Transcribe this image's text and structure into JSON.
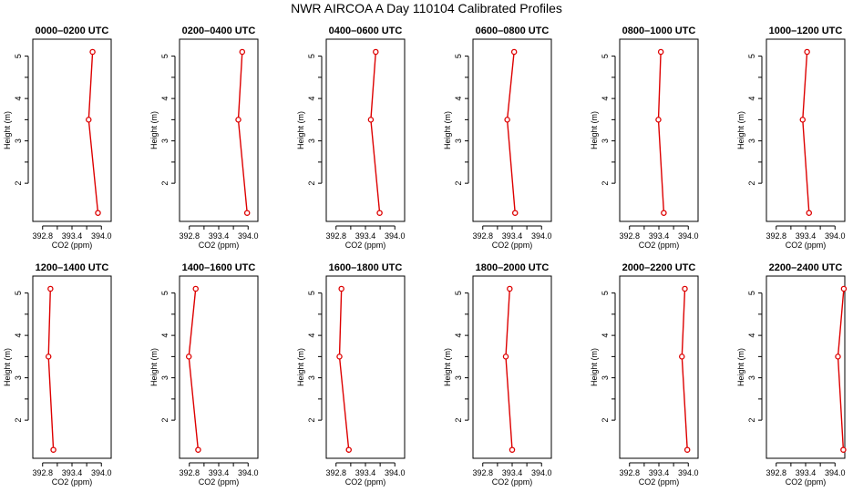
{
  "title": "NWR AIRCOA A  Day 110104  Calibrated Profiles",
  "colors": {
    "series": "#dd0000",
    "frame": "#000000",
    "background": "#ffffff"
  },
  "chart_data": [
    {
      "type": "line",
      "title": "0000–0200 UTC",
      "xlabel": "CO2 (ppm)",
      "ylabel": "Height (m)",
      "xlim": [
        392.6,
        394.2
      ],
      "ylim": [
        1.1,
        5.4
      ],
      "xticks": [
        "392.8",
        "393.4",
        "394.0"
      ],
      "yticks": [
        "2",
        "3",
        "4",
        "5"
      ],
      "series": [
        {
          "x": [
            393.82,
            393.74,
            393.93
          ],
          "y": [
            5.1,
            3.5,
            1.3
          ]
        }
      ]
    },
    {
      "type": "line",
      "title": "0200–0400 UTC",
      "xlabel": "CO2 (ppm)",
      "ylabel": "Height (m)",
      "xlim": [
        392.6,
        394.2
      ],
      "ylim": [
        1.1,
        5.4
      ],
      "xticks": [
        "392.8",
        "393.4",
        "394.0"
      ],
      "yticks": [
        "2",
        "3",
        "4",
        "5"
      ],
      "series": [
        {
          "x": [
            393.88,
            393.8,
            393.98
          ],
          "y": [
            5.1,
            3.5,
            1.3
          ]
        }
      ]
    },
    {
      "type": "line",
      "title": "0400–0600 UTC",
      "xlabel": "CO2 (ppm)",
      "ylabel": "Height (m)",
      "xlim": [
        392.6,
        394.2
      ],
      "ylim": [
        1.1,
        5.4
      ],
      "xticks": [
        "392.8",
        "393.4",
        "394.0"
      ],
      "yticks": [
        "2",
        "3",
        "4",
        "5"
      ],
      "series": [
        {
          "x": [
            393.61,
            393.51,
            393.69
          ],
          "y": [
            5.1,
            3.5,
            1.3
          ]
        }
      ]
    },
    {
      "type": "line",
      "title": "0600–0800 UTC",
      "xlabel": "CO2 (ppm)",
      "ylabel": "Height (m)",
      "xlim": [
        392.6,
        394.2
      ],
      "ylim": [
        1.1,
        5.4
      ],
      "xticks": [
        "392.8",
        "393.4",
        "394.0"
      ],
      "yticks": [
        "2",
        "3",
        "4",
        "5"
      ],
      "series": [
        {
          "x": [
            393.44,
            393.3,
            393.46
          ],
          "y": [
            5.1,
            3.5,
            1.3
          ]
        }
      ]
    },
    {
      "type": "line",
      "title": "0800–1000 UTC",
      "xlabel": "CO2 (ppm)",
      "ylabel": "Height (m)",
      "xlim": [
        392.6,
        394.2
      ],
      "ylim": [
        1.1,
        5.4
      ],
      "xticks": [
        "392.8",
        "393.4",
        "394.0"
      ],
      "yticks": [
        "2",
        "3",
        "4",
        "5"
      ],
      "series": [
        {
          "x": [
            393.44,
            393.39,
            393.5
          ],
          "y": [
            5.1,
            3.5,
            1.3
          ]
        }
      ]
    },
    {
      "type": "line",
      "title": "1000–1200 UTC",
      "xlabel": "CO2 (ppm)",
      "ylabel": "Height (m)",
      "xlim": [
        392.6,
        394.2
      ],
      "ylim": [
        1.1,
        5.4
      ],
      "xticks": [
        "392.8",
        "393.4",
        "394.0"
      ],
      "yticks": [
        "2",
        "3",
        "4",
        "5"
      ],
      "series": [
        {
          "x": [
            393.43,
            393.34,
            393.47
          ],
          "y": [
            5.1,
            3.5,
            1.3
          ]
        }
      ]
    },
    {
      "type": "line",
      "title": "1200–1400 UTC",
      "xlabel": "CO2 (ppm)",
      "ylabel": "Height (m)",
      "xlim": [
        392.6,
        394.2
      ],
      "ylim": [
        1.1,
        5.4
      ],
      "xticks": [
        "392.8",
        "393.4",
        "394.0"
      ],
      "yticks": [
        "2",
        "3",
        "4",
        "5"
      ],
      "series": [
        {
          "x": [
            392.96,
            392.92,
            393.02
          ],
          "y": [
            5.1,
            3.5,
            1.3
          ]
        }
      ]
    },
    {
      "type": "line",
      "title": "1400–1600 UTC",
      "xlabel": "CO2 (ppm)",
      "ylabel": "Height (m)",
      "xlim": [
        392.6,
        394.2
      ],
      "ylim": [
        1.1,
        5.4
      ],
      "xticks": [
        "392.8",
        "393.4",
        "394.0"
      ],
      "yticks": [
        "2",
        "3",
        "4",
        "5"
      ],
      "series": [
        {
          "x": [
            392.93,
            392.79,
            392.98
          ],
          "y": [
            5.1,
            3.5,
            1.3
          ]
        }
      ]
    },
    {
      "type": "line",
      "title": "1600–1800 UTC",
      "xlabel": "CO2 (ppm)",
      "ylabel": "Height (m)",
      "xlim": [
        392.6,
        394.2
      ],
      "ylim": [
        1.1,
        5.4
      ],
      "xticks": [
        "392.8",
        "393.4",
        "394.0"
      ],
      "yticks": [
        "2",
        "3",
        "4",
        "5"
      ],
      "series": [
        {
          "x": [
            392.91,
            392.87,
            393.06
          ],
          "y": [
            5.1,
            3.5,
            1.3
          ]
        }
      ]
    },
    {
      "type": "line",
      "title": "1800–2000 UTC",
      "xlabel": "CO2 (ppm)",
      "ylabel": "Height (m)",
      "xlim": [
        392.6,
        394.2
      ],
      "ylim": [
        1.1,
        5.4
      ],
      "xticks": [
        "392.8",
        "393.4",
        "394.0"
      ],
      "yticks": [
        "2",
        "3",
        "4",
        "5"
      ],
      "series": [
        {
          "x": [
            393.35,
            393.27,
            393.4
          ],
          "y": [
            5.1,
            3.5,
            1.3
          ]
        }
      ]
    },
    {
      "type": "line",
      "title": "2000–2200 UTC",
      "xlabel": "CO2 (ppm)",
      "ylabel": "Height (m)",
      "xlim": [
        392.6,
        394.2
      ],
      "ylim": [
        1.1,
        5.4
      ],
      "xticks": [
        "392.8",
        "393.4",
        "394.0"
      ],
      "yticks": [
        "2",
        "3",
        "4",
        "5"
      ],
      "series": [
        {
          "x": [
            393.93,
            393.87,
            393.98
          ],
          "y": [
            5.1,
            3.5,
            1.3
          ]
        }
      ]
    },
    {
      "type": "line",
      "title": "2200–2400 UTC",
      "xlabel": "CO2 (ppm)",
      "ylabel": "Height (m)",
      "xlim": [
        392.6,
        394.2
      ],
      "ylim": [
        1.1,
        5.4
      ],
      "xticks": [
        "392.8",
        "393.4",
        "394.0"
      ],
      "yticks": [
        "2",
        "3",
        "4",
        "5"
      ],
      "series": [
        {
          "x": [
            394.18,
            394.06,
            394.17
          ],
          "y": [
            5.1,
            3.5,
            1.3
          ]
        }
      ]
    }
  ]
}
